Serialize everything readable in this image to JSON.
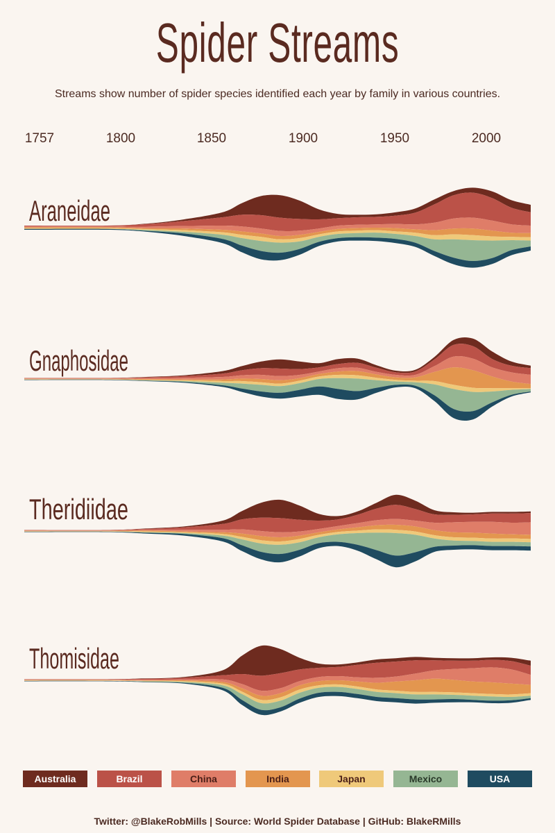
{
  "title": "Spider Streams",
  "subtitle": "Streams show number of spider species identified each year by family in various countries.",
  "footer": "Twitter: @BlakeRobMills | Source: World Spider Database | GitHub: BlakeRMills",
  "chart_data": {
    "type": "area",
    "title": "Spider Streams",
    "subtitle": "Streams show number of spider species identified each year by family in various countries.",
    "x_ticks": [
      "1757",
      "1800",
      "1850",
      "1900",
      "1950",
      "2000"
    ],
    "xlim": [
      1757,
      2020
    ],
    "countries": [
      {
        "name": "Australia",
        "color": "#6e2b1f",
        "text_color": "#ffffff"
      },
      {
        "name": "Brazil",
        "color": "#bb5248",
        "text_color": "#ffffff"
      },
      {
        "name": "China",
        "color": "#df7d68",
        "text_color": "#4a1f18"
      },
      {
        "name": "India",
        "color": "#e3964f",
        "text_color": "#4a1f18"
      },
      {
        "name": "Japan",
        "color": "#efc97a",
        "text_color": "#4a1f18"
      },
      {
        "name": "Mexico",
        "color": "#95b693",
        "text_color": "#2a3a2a"
      },
      {
        "name": "USA",
        "color": "#1f4b60",
        "text_color": "#ffffff"
      }
    ],
    "x": [
      1757,
      1800,
      1820,
      1840,
      1860,
      1870,
      1880,
      1890,
      1900,
      1910,
      1920,
      1930,
      1940,
      1950,
      1960,
      1970,
      1980,
      1990,
      2000,
      2010,
      2020
    ],
    "families": [
      {
        "name": "Araneidae",
        "series": [
          [
            0,
            0,
            0.05,
            0.2,
            0.6,
            1.4,
            2.3,
            2.7,
            2.2,
            1.2,
            0.5,
            0.3,
            0.3,
            0.4,
            0.5,
            0.6,
            0.5,
            0.6,
            0.8,
            0.9,
            0.9
          ],
          [
            0.1,
            0.1,
            0.3,
            0.6,
            1,
            1.4,
            1.6,
            1.6,
            1.4,
            1.1,
            0.9,
            0.9,
            0.9,
            1,
            1.4,
            2.2,
            2.8,
            3,
            2.7,
            2,
            1.6
          ],
          [
            0.1,
            0.1,
            0.2,
            0.3,
            0.5,
            0.6,
            0.6,
            0.6,
            0.5,
            0.4,
            0.4,
            0.4,
            0.4,
            0.5,
            0.6,
            0.9,
            1.2,
            1.3,
            1.2,
            1,
            0.9
          ],
          [
            0.1,
            0.1,
            0.1,
            0.2,
            0.3,
            0.4,
            0.4,
            0.4,
            0.4,
            0.3,
            0.3,
            0.3,
            0.3,
            0.4,
            0.4,
            0.6,
            0.7,
            0.8,
            0.7,
            0.5,
            0.5
          ],
          [
            0.1,
            0.1,
            0.1,
            0.2,
            0.3,
            0.4,
            0.5,
            0.4,
            0.4,
            0.3,
            0.3,
            0.3,
            0.3,
            0.3,
            0.4,
            0.5,
            0.6,
            0.6,
            0.5,
            0.4,
            0.4
          ],
          [
            0,
            0,
            0.1,
            0.2,
            0.5,
            0.9,
            1.2,
            1.2,
            0.9,
            0.6,
            0.5,
            0.5,
            0.6,
            0.6,
            0.8,
            1.4,
            2.2,
            2.5,
            2.1,
            1.2,
            0.7
          ],
          [
            0.1,
            0.1,
            0.1,
            0.3,
            0.5,
            0.8,
            1,
            0.9,
            0.7,
            0.5,
            0.4,
            0.4,
            0.4,
            0.5,
            0.5,
            0.6,
            0.8,
            0.8,
            0.7,
            0.6,
            0.5
          ]
        ]
      },
      {
        "name": "Gnaphosidae",
        "series": [
          [
            0,
            0,
            0.05,
            0.1,
            0.3,
            0.5,
            0.8,
            1.1,
            0.9,
            0.5,
            0.6,
            0.5,
            0.3,
            0.2,
            0.2,
            0.3,
            0.6,
            0.9,
            0.9,
            0.5,
            0.3
          ],
          [
            0.05,
            0.05,
            0.1,
            0.2,
            0.4,
            0.6,
            0.8,
            0.9,
            0.7,
            0.5,
            0.5,
            0.6,
            0.5,
            0.3,
            0.4,
            0.8,
            1.4,
            1.5,
            1,
            0.8,
            0.8
          ],
          [
            0.05,
            0.05,
            0.1,
            0.2,
            0.3,
            0.4,
            0.5,
            0.5,
            0.4,
            0.3,
            0.4,
            0.4,
            0.3,
            0.3,
            0.3,
            0.7,
            1.3,
            1.4,
            1.1,
            1.1,
            1.1
          ],
          [
            0.05,
            0.05,
            0.1,
            0.1,
            0.2,
            0.3,
            0.4,
            0.4,
            0.3,
            0.3,
            0.4,
            0.5,
            0.4,
            0.3,
            0.4,
            1.1,
            2.1,
            2.1,
            1.4,
            0.8,
            0.5
          ],
          [
            0.05,
            0.05,
            0.05,
            0.1,
            0.2,
            0.3,
            0.3,
            0.3,
            0.3,
            0.3,
            0.4,
            0.4,
            0.3,
            0.2,
            0.2,
            0.4,
            0.5,
            0.5,
            0.4,
            0.2,
            0.1
          ],
          [
            0,
            0,
            0.05,
            0.1,
            0.3,
            0.6,
            0.8,
            0.8,
            0.8,
            0.9,
            1.3,
            1.5,
            0.9,
            0.4,
            0.4,
            1.3,
            2.4,
            2.3,
            1.3,
            0.6,
            0.3
          ],
          [
            0.05,
            0.05,
            0.05,
            0.1,
            0.2,
            0.4,
            0.6,
            0.7,
            0.8,
            1,
            1.2,
            1,
            0.6,
            0.3,
            0.3,
            0.7,
            1.1,
            1,
            0.5,
            0.2,
            0.1
          ]
        ]
      },
      {
        "name": "Theridiidae",
        "series": [
          [
            0,
            0,
            0.05,
            0.1,
            0.4,
            1,
            1.8,
            2.2,
            1.7,
            0.8,
            0.4,
            0.4,
            0.7,
            1.2,
            1,
            0.5,
            0.3,
            0.2,
            0.2,
            0.2,
            0.2
          ],
          [
            0.05,
            0.05,
            0.1,
            0.3,
            0.7,
            1.2,
            1.6,
            1.7,
            1.4,
            1,
            0.8,
            1,
            1.4,
            1.7,
            1.4,
            1,
            0.9,
            0.9,
            1,
            1.1,
            1.1
          ],
          [
            0.05,
            0.05,
            0.1,
            0.2,
            0.3,
            0.5,
            0.6,
            0.6,
            0.5,
            0.4,
            0.4,
            0.5,
            0.6,
            0.7,
            0.7,
            0.9,
            1.2,
            1.3,
            1.4,
            1.4,
            1.5
          ],
          [
            0.05,
            0.05,
            0.1,
            0.1,
            0.2,
            0.4,
            0.5,
            0.5,
            0.4,
            0.3,
            0.3,
            0.4,
            0.5,
            0.6,
            0.6,
            0.6,
            0.6,
            0.6,
            0.6,
            0.5,
            0.5
          ],
          [
            0.05,
            0.05,
            0.1,
            0.1,
            0.2,
            0.3,
            0.4,
            0.4,
            0.4,
            0.3,
            0.3,
            0.3,
            0.4,
            0.4,
            0.4,
            0.4,
            0.4,
            0.4,
            0.4,
            0.4,
            0.4
          ],
          [
            0,
            0,
            0.05,
            0.1,
            0.3,
            0.7,
            1,
            1.1,
            0.9,
            0.7,
            0.9,
            1.4,
            2.1,
            2.7,
            2.1,
            1,
            0.6,
            0.5,
            0.5,
            0.5,
            0.5
          ],
          [
            0.05,
            0.05,
            0.1,
            0.2,
            0.4,
            0.7,
            0.9,
            1,
            0.8,
            0.6,
            0.5,
            0.7,
            1.1,
            1.4,
            1.1,
            0.6,
            0.5,
            0.5,
            0.5,
            0.5,
            0.5
          ]
        ]
      },
      {
        "name": "Thomisidae",
        "series": [
          [
            0,
            0,
            0.05,
            0.1,
            0.6,
            2.2,
            3.6,
            2.9,
            1.4,
            0.5,
            0.3,
            0.3,
            0.4,
            0.4,
            0.4,
            0.3,
            0.3,
            0.3,
            0.3,
            0.4,
            0.6
          ],
          [
            0.05,
            0.05,
            0.1,
            0.2,
            0.5,
            1.2,
            1.8,
            1.8,
            1.4,
            1.1,
            1.1,
            1.5,
            1.8,
            1.8,
            1.6,
            1.2,
            1,
            0.9,
            0.9,
            1,
            1.1
          ],
          [
            0.05,
            0.05,
            0.1,
            0.1,
            0.3,
            0.5,
            0.6,
            0.6,
            0.5,
            0.5,
            0.5,
            0.5,
            0.6,
            0.6,
            0.8,
            1,
            1.3,
            1.6,
            1.8,
            1.7,
            1.2
          ],
          [
            0.05,
            0.05,
            0.05,
            0.1,
            0.2,
            0.4,
            0.5,
            0.5,
            0.5,
            0.5,
            0.5,
            0.6,
            0.8,
            1.1,
            1.4,
            1.6,
            1.5,
            1.4,
            1.4,
            1.3,
            1
          ],
          [
            0.05,
            0.05,
            0.05,
            0.1,
            0.2,
            0.3,
            0.4,
            0.4,
            0.4,
            0.3,
            0.3,
            0.3,
            0.3,
            0.3,
            0.3,
            0.3,
            0.3,
            0.3,
            0.3,
            0.3,
            0.3
          ],
          [
            0,
            0,
            0.05,
            0.1,
            0.3,
            0.7,
            0.8,
            0.8,
            0.7,
            0.6,
            0.6,
            0.6,
            0.6,
            0.6,
            0.6,
            0.6,
            0.5,
            0.5,
            0.5,
            0.4,
            0.3
          ],
          [
            0.05,
            0.05,
            0.05,
            0.1,
            0.3,
            0.6,
            0.6,
            0.5,
            0.5,
            0.5,
            0.5,
            0.5,
            0.5,
            0.5,
            0.5,
            0.4,
            0.4,
            0.3,
            0.3,
            0.3,
            0.2
          ]
        ]
      }
    ]
  }
}
